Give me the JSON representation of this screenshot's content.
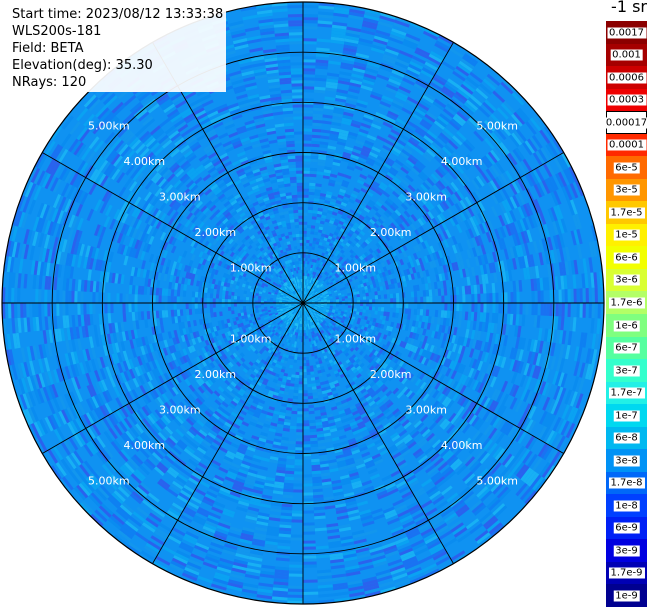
{
  "info": {
    "start_time": "Start time: 2023/08/12 13:33:38",
    "instrument": "WLS200s-181",
    "field": "Field: BETA",
    "elevation": "Elevation(deg): 35.30",
    "nrays": "NRays: 120"
  },
  "unit_label": "-1 sr",
  "chart_data": {
    "type": "heatmap",
    "projection": "polar",
    "field": "BETA",
    "rays": 120,
    "max_range_km": 6.0,
    "range_rings_km": [
      1.0,
      2.0,
      3.0,
      4.0,
      5.0
    ],
    "ring_labels": [
      "1.00km",
      "2.00km",
      "3.00km",
      "4.00km",
      "5.00km"
    ],
    "spoke_angles_deg": [
      0,
      30,
      60,
      90,
      120,
      150,
      180,
      210,
      240,
      270,
      300,
      330
    ],
    "dominant_value_range": [
      "1.7e-8",
      "1.7e-7"
    ],
    "near_center_value_range": [
      "6e-8",
      "1.7e-7"
    ],
    "colorbar": {
      "labels": [
        "0.0017",
        "0.001",
        "0.0006",
        "0.0003",
        "0.00017",
        "0.0001",
        "6e-5",
        "3e-5",
        "1.7e-5",
        "1e-5",
        "6e-6",
        "3e-6",
        "1.7e-6",
        "1e-6",
        "6e-7",
        "3e-7",
        "1.7e-7",
        "1e-7",
        "6e-8",
        "3e-8",
        "1.7e-8",
        "1e-8",
        "6e-9",
        "3e-9",
        "1.7e-9",
        "1e-9"
      ],
      "colors": [
        "#8b0000",
        "#a50000",
        "#cc0000",
        "#ee0000",
        "#ffffff",
        "#ff2a00",
        "#ff6a00",
        "#ff9600",
        "#ffc800",
        "#fff000",
        "#f2ff00",
        "#d9ff33",
        "#b3ff66",
        "#7fff7f",
        "#55ff9f",
        "#33ffcc",
        "#22f0e6",
        "#00d8f0",
        "#00b8f0",
        "#0092f5",
        "#0068f8",
        "#0040ff",
        "#0020f5",
        "#0000e0",
        "#0000b4",
        "#000090"
      ]
    }
  }
}
